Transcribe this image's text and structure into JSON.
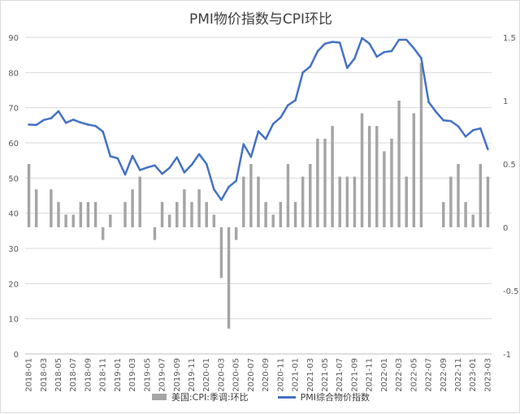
{
  "chart_data": {
    "type": "bar+line",
    "title": "PMI物价指数与CPI环比",
    "categories": [
      "2018-01",
      "2018-02",
      "2018-03",
      "2018-04",
      "2018-05",
      "2018-06",
      "2018-07",
      "2018-08",
      "2018-09",
      "2018-10",
      "2018-11",
      "2018-12",
      "2019-01",
      "2019-02",
      "2019-03",
      "2019-04",
      "2019-05",
      "2019-06",
      "2019-07",
      "2019-08",
      "2019-09",
      "2019-10",
      "2019-11",
      "2019-12",
      "2020-01",
      "2020-02",
      "2020-03",
      "2020-04",
      "2020-05",
      "2020-06",
      "2020-07",
      "2020-08",
      "2020-09",
      "2020-10",
      "2020-11",
      "2020-12",
      "2021-01",
      "2021-02",
      "2021-03",
      "2021-04",
      "2021-05",
      "2021-06",
      "2021-07",
      "2021-08",
      "2021-09",
      "2021-10",
      "2021-11",
      "2021-12",
      "2022-01",
      "2022-02",
      "2022-03",
      "2022-04",
      "2022-05",
      "2022-06",
      "2022-07",
      "2022-08",
      "2022-09",
      "2022-10",
      "2022-11",
      "2022-12",
      "2023-01",
      "2023-02",
      "2023-03"
    ],
    "xtick_labels": [
      "2018-01",
      "2018-03",
      "2018-05",
      "2018-07",
      "2018-09",
      "2018-11",
      "2019-01",
      "2019-03",
      "2019-05",
      "2019-07",
      "2019-09",
      "2019-11",
      "2020-01",
      "2020-03",
      "2020-05",
      "2020-07",
      "2020-09",
      "2020-11",
      "2021-01",
      "2021-03",
      "2021-05",
      "2021-07",
      "2021-09",
      "2021-11",
      "2022-01",
      "2022-03",
      "2022-05",
      "2022-07",
      "2022-09",
      "2022-11",
      "2023-01",
      "2023-03"
    ],
    "left_axis": {
      "ylim": [
        0,
        90
      ],
      "ticks": [
        "0",
        "10",
        "20",
        "30",
        "40",
        "50",
        "60",
        "70",
        "80",
        "90"
      ]
    },
    "right_axis": {
      "ylim": [
        -1,
        1.5
      ],
      "ticks": [
        "-1",
        "-0.5",
        "0",
        "0.5",
        "1",
        "1.5"
      ]
    },
    "series": [
      {
        "name": "美国:CPI:季调:环比",
        "type": "bar",
        "axis": "right",
        "color": "#a5a5a5",
        "values": [
          0.5,
          0.3,
          0.0,
          0.3,
          0.2,
          0.1,
          0.1,
          0.2,
          0.2,
          0.2,
          -0.1,
          0.1,
          0.0,
          0.2,
          0.3,
          0.4,
          0.0,
          -0.1,
          0.2,
          0.1,
          0.2,
          0.3,
          0.2,
          0.3,
          0.2,
          0.1,
          -0.4,
          -0.8,
          -0.1,
          0.4,
          0.5,
          0.4,
          0.2,
          0.1,
          0.2,
          0.5,
          0.2,
          0.4,
          0.5,
          0.7,
          0.7,
          0.8,
          0.4,
          0.4,
          0.4,
          0.9,
          0.8,
          0.8,
          0.6,
          0.7,
          1.0,
          0.4,
          0.9,
          1.3,
          0.0,
          0.0,
          0.2,
          0.4,
          0.5,
          0.2,
          0.1,
          0.5,
          0.4
        ]
      },
      {
        "name": "PMI综合物价指数",
        "type": "line",
        "axis": "left",
        "color": "#4472c4",
        "values": [
          65.2,
          65.1,
          66.5,
          67.0,
          69.0,
          65.7,
          66.6,
          65.8,
          65.2,
          64.8,
          63.2,
          56.2,
          55.6,
          51.0,
          56.3,
          52.3,
          53.0,
          53.6,
          51.2,
          52.9,
          55.9,
          51.6,
          53.8,
          56.8,
          54.0,
          46.8,
          43.8,
          47.5,
          49.2,
          59.6,
          56.0,
          63.3,
          61.1,
          65.4,
          67.2,
          70.7,
          72.1,
          80.0,
          81.7,
          86.0,
          88.2,
          88.7,
          88.5,
          81.3,
          84.0,
          89.8,
          88.2,
          84.5,
          85.8,
          86.1,
          89.3,
          89.3,
          86.9,
          84.1,
          71.6,
          68.8,
          66.4,
          66.2,
          64.7,
          61.8,
          63.6,
          64.1,
          58.2
        ]
      }
    ],
    "grid": true,
    "legend_position": "bottom"
  }
}
